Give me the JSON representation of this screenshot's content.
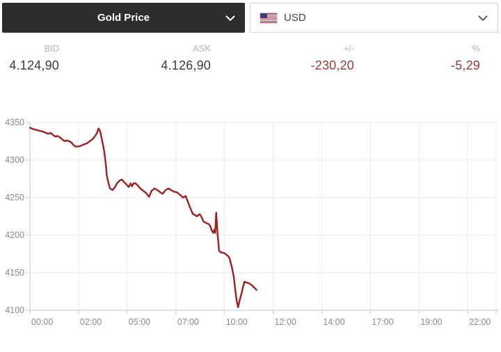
{
  "header": {
    "instrument_dropdown": {
      "label": "Gold Price",
      "icon": "chevron-down"
    },
    "currency_dropdown": {
      "label": "USD",
      "flag_icon": "us-flag",
      "icon": "chevron-down"
    }
  },
  "quote": {
    "columns": [
      {
        "label": "BID",
        "value": "4.124,90",
        "negative": false
      },
      {
        "label": "ASK",
        "value": "4.126,90",
        "negative": false
      },
      {
        "label": "+/-",
        "value": "-230,20",
        "negative": true
      },
      {
        "label": "%",
        "value": "-5,29",
        "negative": true
      }
    ]
  },
  "colors": {
    "header_bg": "#2d2d2d",
    "header_text": "#ffffff",
    "border": "#d3d3d3",
    "label_gray": "#b4b4b4",
    "value_dark": "#3a3a3a",
    "negative_red": "#9e3935",
    "line_red": "#a11e1e",
    "gridline": "#e9e9e9",
    "axis": "#cccccc",
    "tick_text": "#8a8a8a"
  },
  "chart_data": {
    "type": "line",
    "series_name": "Gold Price (USD)",
    "x_unit": "gridline-index (0 = 00:00 tick … 9 = 22:00 tick)",
    "x_tick_labels": [
      "00:00",
      "02:00",
      "05:00",
      "07:00",
      "10:00",
      "12:00",
      "14:00",
      "17:00",
      "19:00",
      "22:00"
    ],
    "y_ticks": [
      4350,
      4300,
      4250,
      4200,
      4150,
      4100
    ],
    "ylim": [
      4100,
      4350
    ],
    "grid": true,
    "line_color": "#a11e1e",
    "points": [
      [
        0.0,
        4343
      ],
      [
        0.07,
        4341
      ],
      [
        0.14,
        4340
      ],
      [
        0.19,
        4339
      ],
      [
        0.26,
        4338
      ],
      [
        0.33,
        4336
      ],
      [
        0.38,
        4335
      ],
      [
        0.43,
        4336
      ],
      [
        0.48,
        4333
      ],
      [
        0.53,
        4331
      ],
      [
        0.57,
        4332
      ],
      [
        0.62,
        4330
      ],
      [
        0.67,
        4327
      ],
      [
        0.72,
        4325
      ],
      [
        0.76,
        4326
      ],
      [
        0.81,
        4325
      ],
      [
        0.86,
        4323
      ],
      [
        0.88,
        4321
      ],
      [
        0.93,
        4318
      ],
      [
        1.0,
        4318
      ],
      [
        1.05,
        4319
      ],
      [
        1.12,
        4321
      ],
      [
        1.17,
        4322
      ],
      [
        1.21,
        4324
      ],
      [
        1.25,
        4326
      ],
      [
        1.29,
        4328
      ],
      [
        1.33,
        4331
      ],
      [
        1.38,
        4336
      ],
      [
        1.41,
        4342
      ],
      [
        1.44,
        4339
      ],
      [
        1.46,
        4333
      ],
      [
        1.48,
        4327
      ],
      [
        1.51,
        4318
      ],
      [
        1.53,
        4311
      ],
      [
        1.56,
        4295
      ],
      [
        1.58,
        4280
      ],
      [
        1.62,
        4268
      ],
      [
        1.65,
        4262
      ],
      [
        1.7,
        4260
      ],
      [
        1.75,
        4264
      ],
      [
        1.79,
        4269
      ],
      [
        1.85,
        4273
      ],
      [
        1.89,
        4274
      ],
      [
        1.93,
        4271
      ],
      [
        1.99,
        4267
      ],
      [
        2.03,
        4264
      ],
      [
        2.07,
        4269
      ],
      [
        2.1,
        4265
      ],
      [
        2.13,
        4269
      ],
      [
        2.17,
        4269
      ],
      [
        2.22,
        4266
      ],
      [
        2.27,
        4262
      ],
      [
        2.33,
        4259
      ],
      [
        2.39,
        4256
      ],
      [
        2.45,
        4251
      ],
      [
        2.5,
        4259
      ],
      [
        2.56,
        4262
      ],
      [
        2.62,
        4260
      ],
      [
        2.68,
        4257
      ],
      [
        2.73,
        4255
      ],
      [
        2.79,
        4260
      ],
      [
        2.85,
        4262
      ],
      [
        2.9,
        4260
      ],
      [
        2.96,
        4258
      ],
      [
        3.02,
        4257
      ],
      [
        3.08,
        4254
      ],
      [
        3.15,
        4250
      ],
      [
        3.2,
        4252
      ],
      [
        3.25,
        4244
      ],
      [
        3.29,
        4237
      ],
      [
        3.35,
        4228
      ],
      [
        3.39,
        4227
      ],
      [
        3.43,
        4225
      ],
      [
        3.49,
        4228
      ],
      [
        3.53,
        4224
      ],
      [
        3.57,
        4218
      ],
      [
        3.63,
        4216
      ],
      [
        3.67,
        4215
      ],
      [
        3.71,
        4212
      ],
      [
        3.74,
        4206
      ],
      [
        3.77,
        4203
      ],
      [
        3.79,
        4207
      ],
      [
        3.81,
        4203
      ],
      [
        3.83,
        4230
      ],
      [
        3.86,
        4200
      ],
      [
        3.89,
        4179
      ],
      [
        3.93,
        4177
      ],
      [
        4.0,
        4176
      ],
      [
        4.06,
        4173
      ],
      [
        4.1,
        4170
      ],
      [
        4.15,
        4158
      ],
      [
        4.19,
        4145
      ],
      [
        4.22,
        4128
      ],
      [
        4.25,
        4113
      ],
      [
        4.28,
        4104
      ],
      [
        4.31,
        4113
      ],
      [
        4.35,
        4122
      ],
      [
        4.38,
        4131
      ],
      [
        4.41,
        4138
      ],
      [
        4.45,
        4137
      ],
      [
        4.5,
        4136
      ],
      [
        4.55,
        4134
      ],
      [
        4.6,
        4131
      ],
      [
        4.63,
        4129
      ],
      [
        4.66,
        4127
      ]
    ]
  }
}
